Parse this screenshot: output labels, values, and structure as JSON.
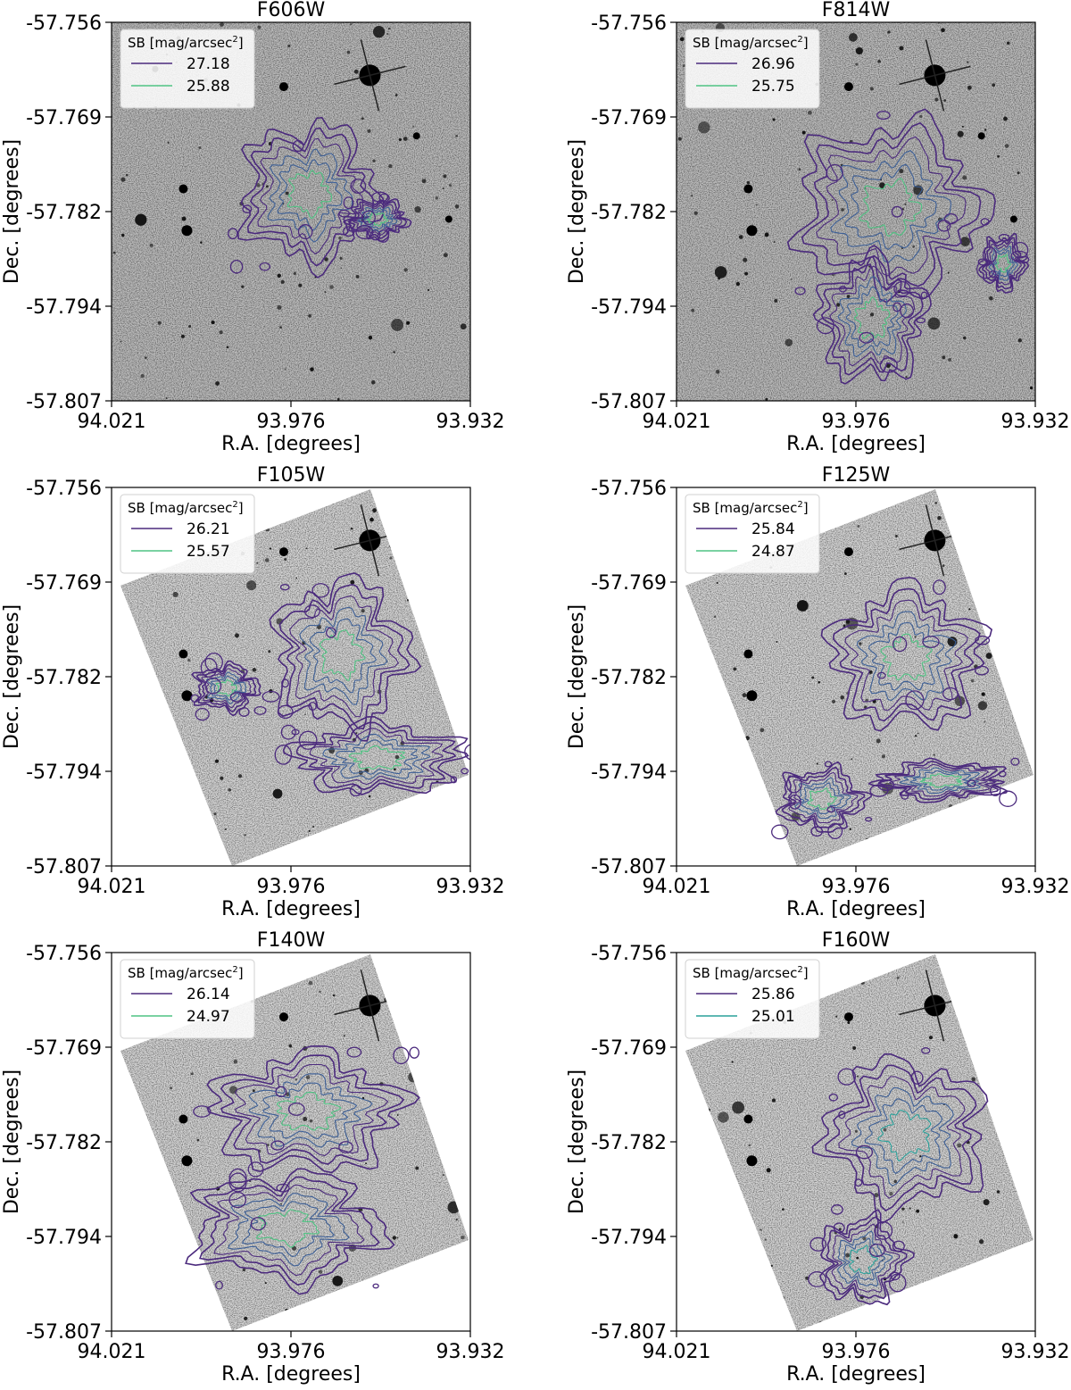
{
  "figure": {
    "panels_count": 6
  },
  "chart_data": [
    {
      "type": "heatmap",
      "title": "F606W",
      "xlabel": "R.A. [degrees]",
      "ylabel": "Dec. [degrees]",
      "xlim": [
        94.021,
        93.932
      ],
      "ylim": [
        -57.807,
        -57.756
      ],
      "xticks": [
        "94.021",
        "93.976",
        "93.932"
      ],
      "yticks": [
        "-57.756",
        "-57.769",
        "-57.782",
        "-57.794",
        "-57.807"
      ],
      "legend_title": "SB [mag/arcsec",
      "legend_title_sup": "2",
      "legend_title_close": "]",
      "legend_position": "upper-left",
      "image": "grayscale inverted sky image",
      "footprint": "full",
      "series": [
        {
          "name": "27.18",
          "color": "#4b2a7d"
        },
        {
          "name": "25.88",
          "color": "#4fc383"
        }
      ],
      "contour_regions": [
        {
          "x": [
            93.988,
            93.956
          ],
          "y": [
            -57.788,
            -57.77
          ]
        },
        {
          "x": [
            93.962,
            93.948
          ],
          "y": [
            -57.785,
            -57.78
          ]
        }
      ]
    },
    {
      "type": "heatmap",
      "title": "F814W",
      "xlabel": "R.A. [degrees]",
      "ylabel": "Dec. [degrees]",
      "xlim": [
        94.021,
        93.932
      ],
      "ylim": [
        -57.807,
        -57.756
      ],
      "xticks": [
        "94.021",
        "93.976",
        "93.932"
      ],
      "yticks": [
        "-57.756",
        "-57.769",
        "-57.782",
        "-57.794",
        "-57.807"
      ],
      "legend_title": "SB [mag/arcsec",
      "legend_title_sup": "2",
      "legend_title_close": "]",
      "legend_position": "upper-left",
      "image": "grayscale inverted sky image",
      "footprint": "full",
      "series": [
        {
          "name": "26.96",
          "color": "#4b2a7d"
        },
        {
          "name": "25.75",
          "color": "#4fc383"
        }
      ],
      "contour_regions": [
        {
          "x": [
            93.99,
            93.946
          ],
          "y": [
            -57.792,
            -57.77
          ]
        },
        {
          "x": [
            93.985,
            93.96
          ],
          "y": [
            -57.804,
            -57.788
          ]
        },
        {
          "x": [
            93.945,
            93.935
          ],
          "y": [
            -57.792,
            -57.785
          ]
        }
      ]
    },
    {
      "type": "heatmap",
      "title": "F105W",
      "xlabel": "R.A. [degrees]",
      "ylabel": "Dec. [degrees]",
      "xlim": [
        94.021,
        93.932
      ],
      "ylim": [
        -57.807,
        -57.756
      ],
      "xticks": [
        "94.021",
        "93.976",
        "93.932"
      ],
      "yticks": [
        "-57.756",
        "-57.769",
        "-57.782",
        "-57.794",
        "-57.807"
      ],
      "legend_title": "SB [mag/arcsec",
      "legend_title_sup": "2",
      "legend_title_close": "]",
      "legend_position": "upper-left",
      "image": "grayscale inverted sky image",
      "footprint": "rotated",
      "series": [
        {
          "name": "26.21",
          "color": "#4b2a7d"
        },
        {
          "name": "25.57",
          "color": "#4fc383"
        }
      ],
      "contour_regions": [
        {
          "x": [
            93.98,
            93.948
          ],
          "y": [
            -57.788,
            -57.769
          ]
        },
        {
          "x": [
            93.975,
            93.935
          ],
          "y": [
            -57.797,
            -57.788
          ]
        },
        {
          "x": [
            94.0,
            93.985
          ],
          "y": [
            -57.786,
            -57.78
          ]
        }
      ]
    },
    {
      "type": "heatmap",
      "title": "F125W",
      "xlabel": "R.A. [degrees]",
      "ylabel": "Dec. [degrees]",
      "xlim": [
        94.021,
        93.932
      ],
      "ylim": [
        -57.807,
        -57.756
      ],
      "xticks": [
        "94.021",
        "93.976",
        "93.932"
      ],
      "yticks": [
        "-57.756",
        "-57.769",
        "-57.782",
        "-57.794",
        "-57.807"
      ],
      "legend_title": "SB [mag/arcsec",
      "legend_title_sup": "2",
      "legend_title_close": "]",
      "legend_position": "upper-left",
      "image": "grayscale inverted sky image",
      "footprint": "rotated",
      "series": [
        {
          "name": "25.84",
          "color": "#4b2a7d"
        },
        {
          "name": "24.87",
          "color": "#4fc383"
        }
      ],
      "contour_regions": [
        {
          "x": [
            93.982,
            93.946
          ],
          "y": [
            -57.788,
            -57.77
          ]
        },
        {
          "x": [
            93.995,
            93.975
          ],
          "y": [
            -57.802,
            -57.794
          ]
        },
        {
          "x": [
            93.97,
            93.94
          ],
          "y": [
            -57.798,
            -57.793
          ]
        }
      ]
    },
    {
      "type": "heatmap",
      "title": "F140W",
      "xlabel": "R.A. [degrees]",
      "ylabel": "Dec. [degrees]",
      "xlim": [
        94.021,
        93.932
      ],
      "ylim": [
        -57.807,
        -57.756
      ],
      "xticks": [
        "94.021",
        "93.976",
        "93.932"
      ],
      "yticks": [
        "-57.756",
        "-57.769",
        "-57.782",
        "-57.794",
        "-57.807"
      ],
      "legend_title": "SB [mag/arcsec",
      "legend_title_sup": "2",
      "legend_title_close": "]",
      "legend_position": "upper-left",
      "image": "grayscale inverted sky image",
      "footprint": "rotated",
      "series": [
        {
          "name": "26.14",
          "color": "#4b2a7d"
        },
        {
          "name": "24.97",
          "color": "#4fc383"
        }
      ],
      "contour_regions": [
        {
          "x": [
            93.995,
            93.95
          ],
          "y": [
            -57.785,
            -57.77
          ]
        },
        {
          "x": [
            94.0,
            93.955
          ],
          "y": [
            -57.8,
            -57.786
          ]
        }
      ]
    },
    {
      "type": "heatmap",
      "title": "F160W",
      "xlabel": "R.A. [degrees]",
      "ylabel": "Dec. [degrees]",
      "xlim": [
        94.021,
        93.932
      ],
      "ylim": [
        -57.807,
        -57.756
      ],
      "xticks": [
        "94.021",
        "93.976",
        "93.932"
      ],
      "yticks": [
        "-57.756",
        "-57.769",
        "-57.782",
        "-57.794",
        "-57.807"
      ],
      "legend_title": "SB [mag/arcsec",
      "legend_title_sup": "2",
      "legend_title_close": "]",
      "legend_position": "upper-left",
      "image": "grayscale inverted sky image",
      "footprint": "rotated",
      "series": [
        {
          "name": "25.86",
          "color": "#4b2a7d"
        },
        {
          "name": "25.01",
          "color": "#2aa09a"
        }
      ],
      "contour_regions": [
        {
          "x": [
            93.983,
            93.945
          ],
          "y": [
            -57.79,
            -57.771
          ]
        },
        {
          "x": [
            93.985,
            93.965
          ],
          "y": [
            -57.803,
            -57.792
          ]
        }
      ]
    }
  ]
}
